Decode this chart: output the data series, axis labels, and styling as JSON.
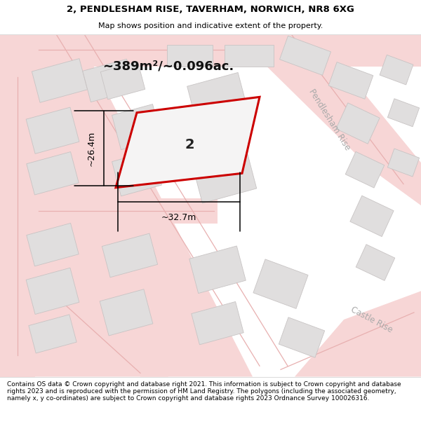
{
  "title_line1": "2, PENDLESHAM RISE, TAVERHAM, NORWICH, NR8 6XG",
  "title_line2": "Map shows position and indicative extent of the property.",
  "area_label": "~389m²/~0.096ac.",
  "plot_number": "2",
  "dim_width": "~32.7m",
  "dim_height": "~26.4m",
  "street_pendlesham": "Pendlesham Rise",
  "street_castle": "Castle Rise",
  "footer_text": "Contains OS data © Crown copyright and database right 2021. This information is subject to Crown copyright and database rights 2023 and is reproduced with the permission of HM Land Registry. The polygons (including the associated geometry, namely x, y co-ordinates) are subject to Crown copyright and database rights 2023 Ordnance Survey 100026316.",
  "map_bg": "#f2f0f0",
  "road_fill": "#f7d6d6",
  "road_line": "#e8b0b0",
  "building_fill": "#e0dede",
  "building_edge": "#c8c4c4",
  "highlight_fill": "#f5f4f4",
  "highlight_edge": "#cc0000",
  "footer_bg": "#ffffff",
  "title_bg": "#ffffff",
  "sep_line": "#dddddd",
  "title_fs1": 9.5,
  "title_fs2": 8.0,
  "area_fs": 13,
  "plot_num_fs": 14,
  "dim_fs": 9,
  "street_fs": 8.5,
  "footer_fs": 6.5
}
